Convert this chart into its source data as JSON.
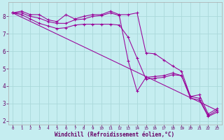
{
  "xlabel": "Windchill (Refroidissement éolien,°C)",
  "background_color": "#c5edf0",
  "line_color": "#990099",
  "grid_color": "#aad8da",
  "xlim": [
    -0.5,
    23.5
  ],
  "ylim": [
    1.8,
    8.8
  ],
  "xticks": [
    0,
    1,
    2,
    3,
    4,
    5,
    6,
    7,
    8,
    9,
    10,
    11,
    12,
    13,
    14,
    15,
    16,
    17,
    18,
    19,
    20,
    21,
    22,
    23
  ],
  "yticks": [
    2,
    3,
    4,
    5,
    6,
    7,
    8
  ],
  "line1_x": [
    0,
    1,
    2,
    3,
    4,
    5,
    6,
    7,
    8,
    9,
    10,
    11,
    12,
    13,
    14,
    15,
    16,
    17,
    18,
    19,
    20,
    21,
    22,
    23
  ],
  "line1_y": [
    8.2,
    8.3,
    8.1,
    8.1,
    7.8,
    7.7,
    8.1,
    7.85,
    8.0,
    8.1,
    8.1,
    8.3,
    8.1,
    8.1,
    8.2,
    5.9,
    5.85,
    5.5,
    5.15,
    4.85,
    3.4,
    3.5,
    2.4,
    2.7
  ],
  "line2_x": [
    0,
    1,
    2,
    3,
    4,
    5,
    6,
    7,
    8,
    9,
    10,
    11,
    12,
    13,
    14,
    15,
    16,
    17,
    18,
    19,
    20,
    21,
    22,
    23
  ],
  "line2_y": [
    8.2,
    8.2,
    8.0,
    7.9,
    7.7,
    7.6,
    7.6,
    7.8,
    7.85,
    8.0,
    8.05,
    8.2,
    8.05,
    5.45,
    3.7,
    4.5,
    4.55,
    4.6,
    4.75,
    4.6,
    3.4,
    3.3,
    2.3,
    2.6
  ],
  "line3_x": [
    0,
    1,
    2,
    3,
    4,
    5,
    6,
    7,
    8,
    9,
    10,
    11,
    12,
    13,
    14,
    15,
    16,
    17,
    18,
    19,
    20,
    21,
    22,
    23
  ],
  "line3_y": [
    8.2,
    8.1,
    7.85,
    7.6,
    7.45,
    7.3,
    7.35,
    7.5,
    7.55,
    7.55,
    7.55,
    7.55,
    7.5,
    6.8,
    5.6,
    4.4,
    4.45,
    4.5,
    4.65,
    4.6,
    3.3,
    3.2,
    2.25,
    2.5
  ],
  "line4_x": [
    0,
    23
  ],
  "line4_y": [
    8.2,
    2.6
  ]
}
